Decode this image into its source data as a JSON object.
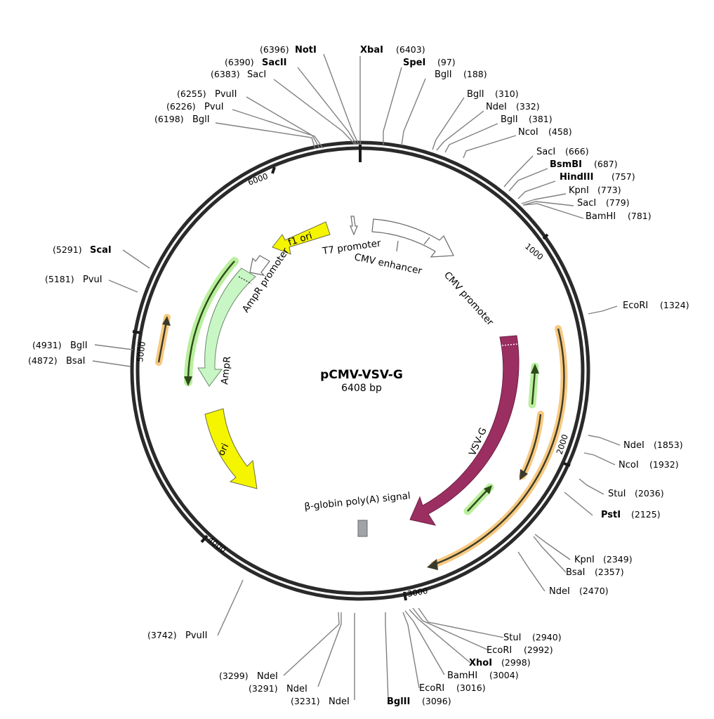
{
  "plasmid": {
    "name": "pCMV-VSV-G",
    "size_label": "6408 bp",
    "length": 6408
  },
  "tick_labels": [
    "1000",
    "2000",
    "3000",
    "4000",
    "5000",
    "6000"
  ],
  "sites": [
    {
      "name": "NotI",
      "pos": "(6396)",
      "bold": true
    },
    {
      "name": "XbaI",
      "pos": "(6403)",
      "bold": true
    },
    {
      "name": "SacII",
      "pos": "(6390)",
      "bold": true
    },
    {
      "name": "SpeI",
      "pos": "(97)",
      "bold": true
    },
    {
      "name": "SacI",
      "pos": "(6383)",
      "bold": false
    },
    {
      "name": "BglI",
      "pos": "(188)",
      "bold": false
    },
    {
      "name": "PvuII",
      "pos": "(6255)",
      "bold": false
    },
    {
      "name": "BglI",
      "pos": "(310)",
      "bold": false
    },
    {
      "name": "PvuI",
      "pos": "(6226)",
      "bold": false
    },
    {
      "name": "NdeI",
      "pos": "(332)",
      "bold": false
    },
    {
      "name": "BglI",
      "pos": "(6198)",
      "bold": false
    },
    {
      "name": "BglI",
      "pos": "(381)",
      "bold": false
    },
    {
      "name": "NcoI",
      "pos": "(458)",
      "bold": false
    },
    {
      "name": "SacI",
      "pos": "(666)",
      "bold": false
    },
    {
      "name": "BsmBI",
      "pos": "(687)",
      "bold": true
    },
    {
      "name": "HindIII",
      "pos": "(757)",
      "bold": true
    },
    {
      "name": "KpnI",
      "pos": "(773)",
      "bold": false
    },
    {
      "name": "SacI",
      "pos": "(779)",
      "bold": false
    },
    {
      "name": "BamHI",
      "pos": "(781)",
      "bold": false
    },
    {
      "name": "EcoRI",
      "pos": "(1324)",
      "bold": false
    },
    {
      "name": "NdeI",
      "pos": "(1853)",
      "bold": false
    },
    {
      "name": "NcoI",
      "pos": "(1932)",
      "bold": false
    },
    {
      "name": "StuI",
      "pos": "(2036)",
      "bold": false
    },
    {
      "name": "PstI",
      "pos": "(2125)",
      "bold": true
    },
    {
      "name": "KpnI",
      "pos": "(2349)",
      "bold": false
    },
    {
      "name": "BsaI",
      "pos": "(2357)",
      "bold": false
    },
    {
      "name": "NdeI",
      "pos": "(2470)",
      "bold": false
    },
    {
      "name": "StuI",
      "pos": "(2940)",
      "bold": false
    },
    {
      "name": "EcoRI",
      "pos": "(2992)",
      "bold": false
    },
    {
      "name": "XhoI",
      "pos": "(2998)",
      "bold": true
    },
    {
      "name": "BamHI",
      "pos": "(3004)",
      "bold": false
    },
    {
      "name": "EcoRI",
      "pos": "(3016)",
      "bold": false
    },
    {
      "name": "BglII",
      "pos": "(3096)",
      "bold": true
    },
    {
      "name": "NdeI",
      "pos": "(3231)",
      "bold": false
    },
    {
      "name": "NdeI",
      "pos": "(3291)",
      "bold": false
    },
    {
      "name": "NdeI",
      "pos": "(3299)",
      "bold": false
    },
    {
      "name": "PvuII",
      "pos": "(3742)",
      "bold": false
    },
    {
      "name": "BsaI",
      "pos": "(4872)",
      "bold": false
    },
    {
      "name": "BglI",
      "pos": "(4931)",
      "bold": false
    },
    {
      "name": "PvuI",
      "pos": "(5181)",
      "bold": false
    },
    {
      "name": "ScaI",
      "pos": "(5291)",
      "bold": true
    }
  ],
  "features": {
    "vsvg": "VSV-G",
    "f1ori": "f1 ori",
    "ori": "ori",
    "ampr": "AmpR",
    "ampr_promoter": "AmpR promoter",
    "t7_promoter": "T7 promoter",
    "cmv_enhancer": "CMV enhancer",
    "cmv_promoter": "CMV promoter",
    "polyA": "β-globin poly(A) signal"
  },
  "colors": {
    "backbone": "#2a2a2a",
    "vsvg": "#9b2f62",
    "ori": "#f5f500",
    "ampr": "#c8f7c5",
    "promoter": "#ffffff",
    "orf": "#f7c980",
    "orf_green": "#b9ef9d",
    "polyA": "#a0a4a8"
  }
}
